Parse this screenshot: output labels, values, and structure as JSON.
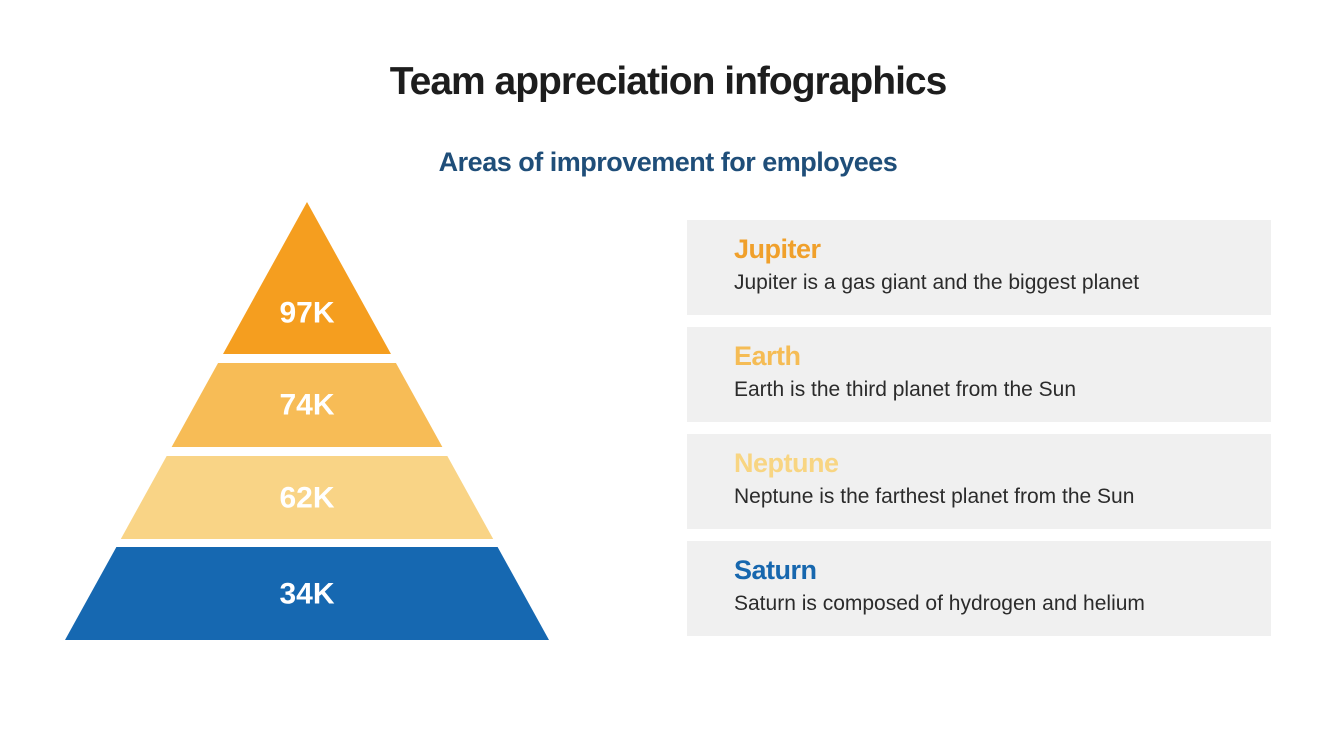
{
  "header": {
    "title": "Team appreciation infographics",
    "subtitle": "Areas of improvement for employees"
  },
  "chart_data": {
    "type": "pyramid",
    "title": "Areas of improvement for employees",
    "orientation": "apex-top",
    "levels": [
      {
        "name": "Jupiter",
        "label": "97K",
        "value": 97000,
        "color": "#F59E1F"
      },
      {
        "name": "Earth",
        "label": "74K",
        "value": 74000,
        "color": "#F7BC56"
      },
      {
        "name": "Neptune",
        "label": "62K",
        "value": 62000,
        "color": "#F9D486"
      },
      {
        "name": "Saturn",
        "label": "34K",
        "value": 34000,
        "color": "#1668B1"
      }
    ],
    "label_color": "#FFFFFF",
    "legend_position": "right"
  },
  "cards": {
    "background_color": "#F0F0F0",
    "items": [
      {
        "title": "Jupiter",
        "description": "Jupiter is a gas giant and the biggest planet",
        "accent_color": "#F0A02B"
      },
      {
        "title": "Earth",
        "description": "Earth is the third planet from the Sun",
        "accent_color": "#F5BC55"
      },
      {
        "title": "Neptune",
        "description": "Neptune is the farthest planet from the Sun",
        "accent_color": "#F8D582"
      },
      {
        "title": "Saturn",
        "description": "Saturn is composed of hydrogen and helium",
        "accent_color": "#1767AE"
      }
    ]
  },
  "colors": {
    "title_text": "#1D1D1D",
    "subtitle_text": "#1F4E79",
    "body_text": "#2B2B2B",
    "background": "#FFFFFF"
  }
}
